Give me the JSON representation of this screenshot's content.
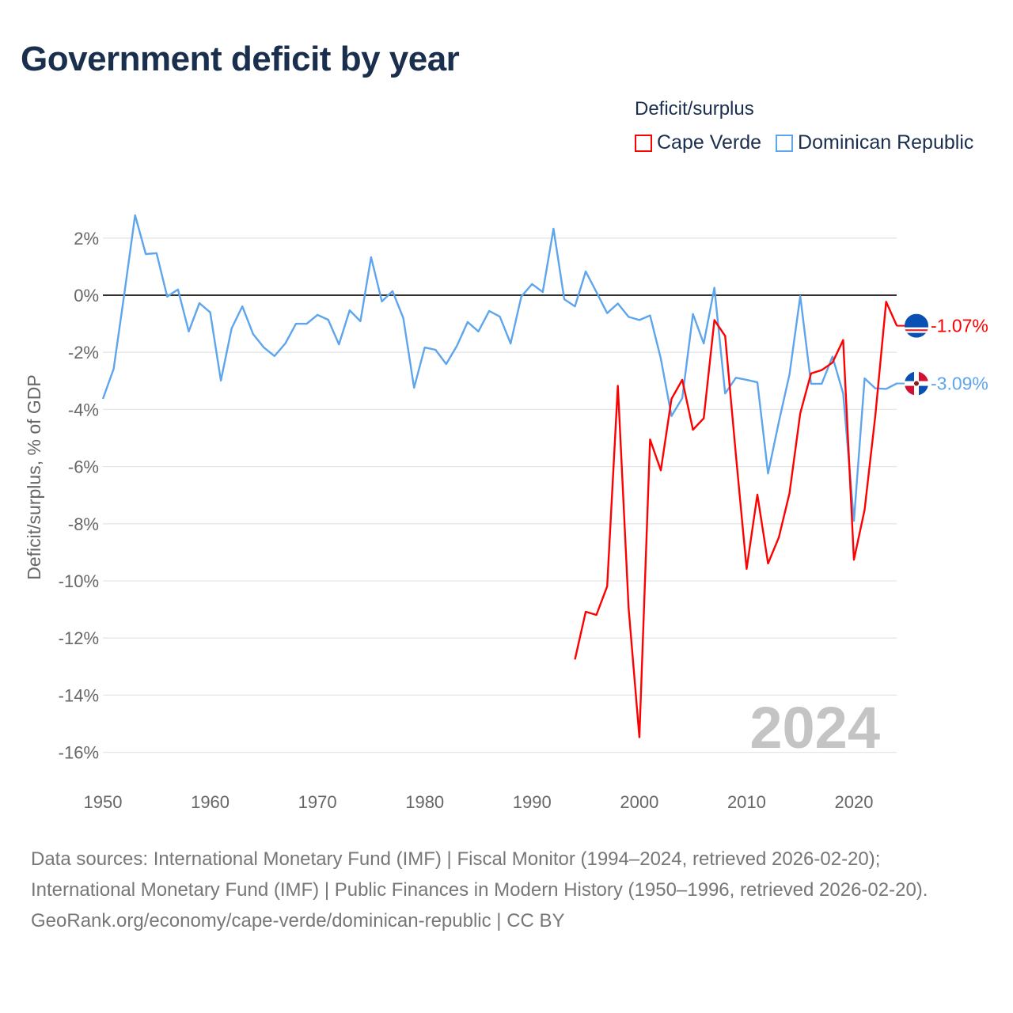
{
  "chart_data": {
    "type": "line",
    "title": "Government deficit by year",
    "xlabel": "",
    "ylabel": "Deficit/surplus, % of GDP",
    "xlim": [
      1950,
      2024
    ],
    "ylim": [
      -17,
      3
    ],
    "x_ticks": [
      "1950",
      "1960",
      "1970",
      "1980",
      "1990",
      "2000",
      "2010",
      "2020"
    ],
    "y_ticks": [
      {
        "value": 2,
        "label": "2%"
      },
      {
        "value": 0,
        "label": "0%"
      },
      {
        "value": -2,
        "label": "-2%"
      },
      {
        "value": -4,
        "label": "-4%"
      },
      {
        "value": -6,
        "label": "-6%"
      },
      {
        "value": -8,
        "label": "-8%"
      },
      {
        "value": -10,
        "label": "-10%"
      },
      {
        "value": -12,
        "label": "-12%"
      },
      {
        "value": -14,
        "label": "-14%"
      },
      {
        "value": -16,
        "label": "-16%"
      }
    ],
    "grid": true,
    "legend_title": "Deficit/surplus",
    "legend_position": "top-right",
    "year_watermark": "2024",
    "series": [
      {
        "name": "Cape Verde",
        "color": "#ff0000",
        "end_label": "-1.07%",
        "start_year": 1994,
        "values": [
          -12.75,
          -11.08,
          -11.19,
          -10.19,
          -3.17,
          -10.95,
          -15.47,
          -5.05,
          -6.13,
          -3.63,
          -2.96,
          -4.71,
          -4.31,
          -0.87,
          -1.43,
          -5.6,
          -9.58,
          -6.98,
          -9.39,
          -8.48,
          -6.93,
          -4.13,
          -2.74,
          -2.62,
          -2.36,
          -1.57,
          -9.26,
          -7.51,
          -4.2,
          -0.23,
          -1.07
        ]
      },
      {
        "name": "Dominican Republic",
        "color": "#5da5ec",
        "end_label": "-3.09%",
        "start_year": 1950,
        "values": [
          -3.63,
          -2.58,
          0.05,
          2.8,
          1.44,
          1.47,
          -0.05,
          0.2,
          -1.27,
          -0.28,
          -0.6,
          -2.99,
          -1.16,
          -0.39,
          -1.36,
          -1.83,
          -2.13,
          -1.69,
          -1.0,
          -1.0,
          -0.69,
          -0.86,
          -1.72,
          -0.53,
          -0.91,
          1.33,
          -0.22,
          0.14,
          -0.8,
          -3.24,
          -1.83,
          -1.91,
          -2.41,
          -1.77,
          -0.94,
          -1.27,
          -0.55,
          -0.75,
          -1.69,
          -0.05,
          0.39,
          0.11,
          2.33,
          -0.14,
          -0.39,
          0.83,
          0.11,
          -0.63,
          -0.29,
          -0.76,
          -0.87,
          -0.71,
          -2.22,
          -4.23,
          -3.6,
          -0.66,
          -1.69,
          0.26,
          -3.44,
          -2.89,
          -2.96,
          -3.05,
          -6.24,
          -4.44,
          -2.77,
          -0.03,
          -3.1,
          -3.1,
          -2.15,
          -3.44,
          -7.9,
          -2.91,
          -3.26,
          -3.28,
          -3.09
        ]
      }
    ]
  },
  "footer": {
    "sources": "Data sources: International Monetary Fund (IMF) | Fiscal Monitor (1994–2024, retrieved 2026-02-20); International Monetary Fund (IMF) | Public Finances in Modern History (1950–1996, retrieved 2026-02-20).",
    "credit": "GeoRank.org/economy/cape-verde/dominican-republic | CC BY"
  }
}
